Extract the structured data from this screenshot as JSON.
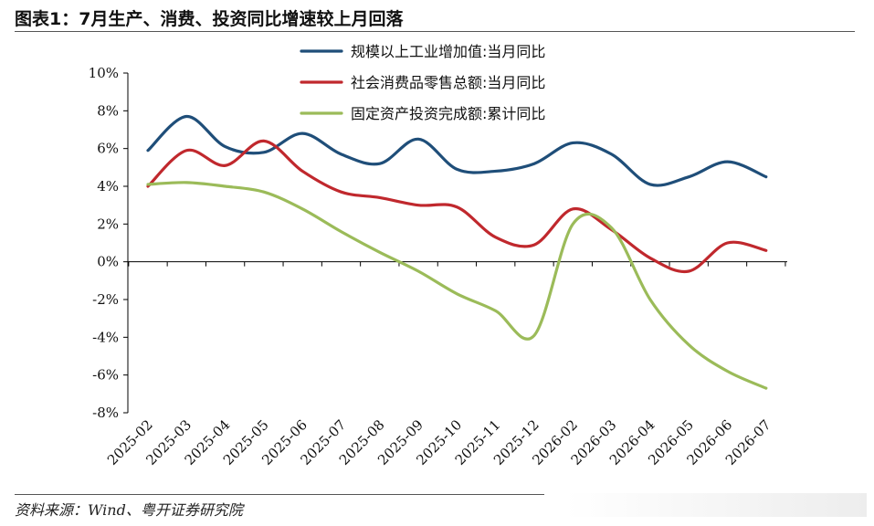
{
  "header": {
    "title": "图表1：7月生产、消费、投资同比增速较上月回落"
  },
  "footer": {
    "source": "资料来源：Wind、粤开证券研究院"
  },
  "chart_data": {
    "type": "line",
    "title": "图表1：7月生产、消费、投资同比增速较上月回落",
    "xlabel": "",
    "ylabel": "",
    "ylim": [
      -8,
      10
    ],
    "yticks": [
      10,
      8,
      6,
      4,
      2,
      0,
      -2,
      -4,
      -6,
      -8
    ],
    "ytick_labels": [
      "10%",
      "8%",
      "6%",
      "4%",
      "2%",
      "0%",
      "-2%",
      "-4%",
      "-6%",
      "-8%"
    ],
    "categories": [
      "2025-02",
      "2025-03",
      "2025-04",
      "2025-05",
      "2025-06",
      "2025-07",
      "2025-08",
      "2025-09",
      "2025-10",
      "2025-11",
      "2025-12",
      "2026-02",
      "2026-03",
      "2026-04",
      "2026-05",
      "2026-06",
      "2026-07"
    ],
    "legend_position": "top-right",
    "grid": false,
    "series": [
      {
        "name": "规模以上工业增加值:当月同比",
        "color": "#1f4e79",
        "values": [
          5.9,
          7.7,
          6.1,
          5.8,
          6.8,
          5.7,
          5.2,
          6.5,
          4.9,
          4.8,
          5.2,
          6.3,
          5.7,
          4.1,
          4.5,
          5.3,
          4.5
        ]
      },
      {
        "name": "社会消费品零售总额:当月同比",
        "color": "#c0282d",
        "values": [
          4.0,
          5.9,
          5.1,
          6.4,
          4.8,
          3.7,
          3.4,
          3.0,
          2.9,
          1.3,
          0.9,
          2.8,
          1.7,
          0.2,
          -0.5,
          1.0,
          0.6
        ]
      },
      {
        "name": "固定资产投资完成额:累计同比",
        "color": "#9bbb59",
        "values": [
          4.1,
          4.2,
          4.0,
          3.7,
          2.8,
          1.6,
          0.5,
          -0.5,
          -1.7,
          -2.6,
          -3.9,
          2.0,
          1.8,
          -2.0,
          -4.4,
          -5.8,
          -6.7
        ]
      }
    ]
  }
}
